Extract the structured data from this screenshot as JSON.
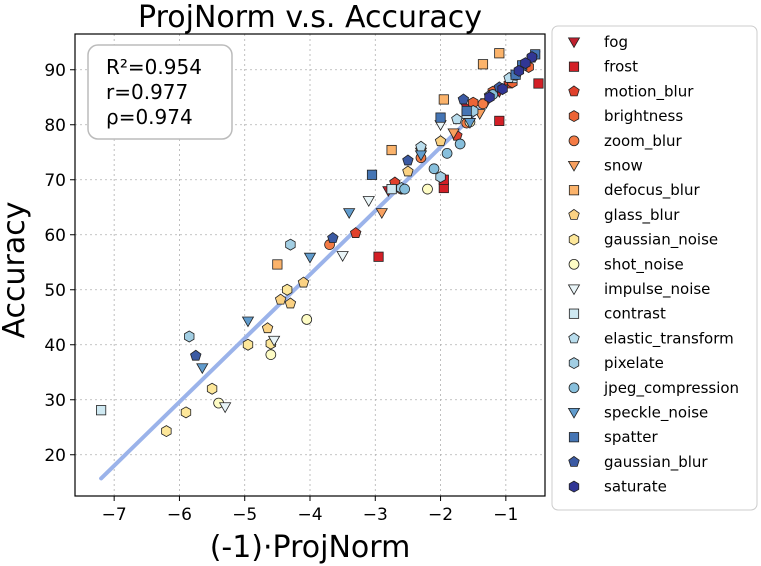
{
  "chart_data": {
    "type": "scatter",
    "title": "ProjNorm  v.s.  Accuracy",
    "xlabel": "(-1)·ProjNorm",
    "ylabel": "Accuracy",
    "xlim": [
      -7.6,
      -0.4
    ],
    "ylim": [
      12.5,
      96.5
    ],
    "xticks": [
      -7,
      -6,
      -5,
      -4,
      -3,
      -2,
      -1
    ],
    "xtick_labels": [
      "−7",
      "−6",
      "−5",
      "−4",
      "−3",
      "−2",
      "−1"
    ],
    "yticks": [
      20,
      30,
      40,
      50,
      60,
      70,
      80,
      90
    ],
    "ytick_labels": [
      "20",
      "30",
      "40",
      "50",
      "60",
      "70",
      "80",
      "90"
    ],
    "grid": true,
    "legend_position": "outside-right",
    "stats": [
      "R²=0.954",
      "r=0.977",
      "ρ=0.974"
    ],
    "fit_line": {
      "x": [
        -7.2,
        -0.5
      ],
      "y": [
        15.7,
        93.3
      ],
      "color": "#9bb3ea"
    },
    "series": [
      {
        "name": "fog",
        "marker": "triangle-down",
        "color": "#c0202e",
        "points": [
          [
            -1.1,
            86
          ],
          [
            -2.8,
            68
          ],
          [
            -1.6,
            83
          ],
          [
            -1.3,
            84
          ]
        ]
      },
      {
        "name": "frost",
        "marker": "square",
        "color": "#d31f26",
        "points": [
          [
            -0.5,
            87.5
          ],
          [
            -1.1,
            80.7
          ],
          [
            -1.95,
            68.5
          ],
          [
            -1.95,
            70
          ],
          [
            -2.95,
            56
          ]
        ]
      },
      {
        "name": "motion_blur",
        "marker": "pentagon",
        "color": "#e0412c",
        "points": [
          [
            -3.3,
            60.3
          ],
          [
            -2.7,
            69.5
          ],
          [
            -1.75,
            78
          ],
          [
            -0.95,
            87.5
          ],
          [
            -0.7,
            91
          ]
        ]
      },
      {
        "name": "brightness",
        "marker": "hexagon",
        "color": "#ec6436",
        "points": [
          [
            -1.2,
            86
          ],
          [
            -0.9,
            87.7
          ],
          [
            -0.65,
            90.5
          ],
          [
            -1.5,
            84
          ]
        ]
      },
      {
        "name": "zoom_blur",
        "marker": "circle",
        "color": "#f47b45",
        "points": [
          [
            -3.7,
            58.2
          ],
          [
            -2.6,
            68.3
          ],
          [
            -1.6,
            80.3
          ],
          [
            -1.35,
            83.8
          ],
          [
            -2.3,
            74
          ]
        ]
      },
      {
        "name": "snow",
        "marker": "triangle-down",
        "color": "#f8a05f",
        "points": [
          [
            -2.9,
            64
          ],
          [
            -2.3,
            75
          ],
          [
            -1.8,
            78.5
          ],
          [
            -1.4,
            82
          ]
        ]
      },
      {
        "name": "defocus_blur",
        "marker": "square",
        "color": "#fbb36b",
        "points": [
          [
            -4.5,
            54.6
          ],
          [
            -2.75,
            75.4
          ],
          [
            -1.95,
            84.6
          ],
          [
            -1.35,
            91
          ],
          [
            -1.1,
            93
          ]
        ]
      },
      {
        "name": "glass_blur",
        "marker": "pentagon",
        "color": "#fbd283",
        "points": [
          [
            -4.65,
            43
          ],
          [
            -4.45,
            48.2
          ],
          [
            -4.1,
            51.3
          ],
          [
            -2.5,
            71.5
          ],
          [
            -4.3,
            47.5
          ],
          [
            -2.0,
            77
          ]
        ]
      },
      {
        "name": "gaussian_noise",
        "marker": "hexagon",
        "color": "#fde79a",
        "points": [
          [
            -6.2,
            24.3
          ],
          [
            -5.9,
            27.7
          ],
          [
            -5.5,
            32
          ],
          [
            -4.95,
            40
          ],
          [
            -4.6,
            40.2
          ],
          [
            -4.35,
            50
          ]
        ]
      },
      {
        "name": "shot_noise",
        "marker": "circle",
        "color": "#fefcc5",
        "points": [
          [
            -5.4,
            29.4
          ],
          [
            -4.6,
            38.2
          ],
          [
            -4.05,
            44.6
          ],
          [
            -2.2,
            68.3
          ],
          [
            -1.55,
            80.5
          ]
        ]
      },
      {
        "name": "impulse_noise",
        "marker": "triangle-down",
        "color": "#e9f5f8",
        "points": [
          [
            -5.3,
            28.7
          ],
          [
            -4.55,
            40.8
          ],
          [
            -3.5,
            56.2
          ],
          [
            -3.1,
            66.2
          ],
          [
            -2.0,
            80
          ],
          [
            -1.05,
            86.5
          ]
        ]
      },
      {
        "name": "contrast",
        "marker": "square",
        "color": "#cfe9f2",
        "points": [
          [
            -7.2,
            28.1
          ],
          [
            -2.75,
            68.3
          ],
          [
            -1.6,
            82
          ],
          [
            -0.9,
            88.5
          ]
        ]
      },
      {
        "name": "elastic_transform",
        "marker": "pentagon",
        "color": "#b9dded",
        "points": [
          [
            -2.3,
            76
          ],
          [
            -1.75,
            81
          ],
          [
            -1.25,
            85.3
          ],
          [
            -0.95,
            88.5
          ]
        ]
      },
      {
        "name": "pixelate",
        "marker": "hexagon",
        "color": "#a2cee3",
        "points": [
          [
            -5.85,
            41.5
          ],
          [
            -4.3,
            58.2
          ],
          [
            -2.6,
            68.5
          ],
          [
            -2.0,
            70.5
          ],
          [
            -1.5,
            82.5
          ]
        ]
      },
      {
        "name": "jpeg_compression",
        "marker": "circle",
        "color": "#87bfdc",
        "points": [
          [
            -2.55,
            68.3
          ],
          [
            -2.1,
            72
          ],
          [
            -1.9,
            74.8
          ],
          [
            -1.7,
            76.5
          ],
          [
            -1.2,
            85.5
          ],
          [
            -0.85,
            89
          ]
        ]
      },
      {
        "name": "speckle_noise",
        "marker": "triangle-down",
        "color": "#619ccd",
        "points": [
          [
            -5.65,
            35.8
          ],
          [
            -4.95,
            44.3
          ],
          [
            -4.0,
            55.9
          ],
          [
            -3.4,
            64
          ],
          [
            -2.3,
            74.5
          ],
          [
            -1.55,
            80.4
          ]
        ]
      },
      {
        "name": "spatter",
        "marker": "square",
        "color": "#4575b4",
        "points": [
          [
            -3.05,
            70.9
          ],
          [
            -2.0,
            81.3
          ],
          [
            -1.6,
            82.5
          ],
          [
            -0.85,
            89.1
          ],
          [
            -0.75,
            90.8
          ],
          [
            -0.55,
            92.8
          ]
        ]
      },
      {
        "name": "gaussian_blur",
        "marker": "pentagon",
        "color": "#3b5aa3",
        "points": [
          [
            -5.75,
            38
          ],
          [
            -3.65,
            59.4
          ],
          [
            -2.5,
            73.5
          ],
          [
            -1.65,
            84.6
          ],
          [
            -1.1,
            86.8
          ],
          [
            -0.6,
            92.2
          ]
        ]
      },
      {
        "name": "saturate",
        "marker": "hexagon",
        "color": "#313695",
        "points": [
          [
            -1.05,
            86.5
          ],
          [
            -0.8,
            89.8
          ],
          [
            -0.6,
            92.3
          ],
          [
            -1.25,
            85
          ],
          [
            -0.7,
            91.2
          ]
        ]
      }
    ]
  }
}
